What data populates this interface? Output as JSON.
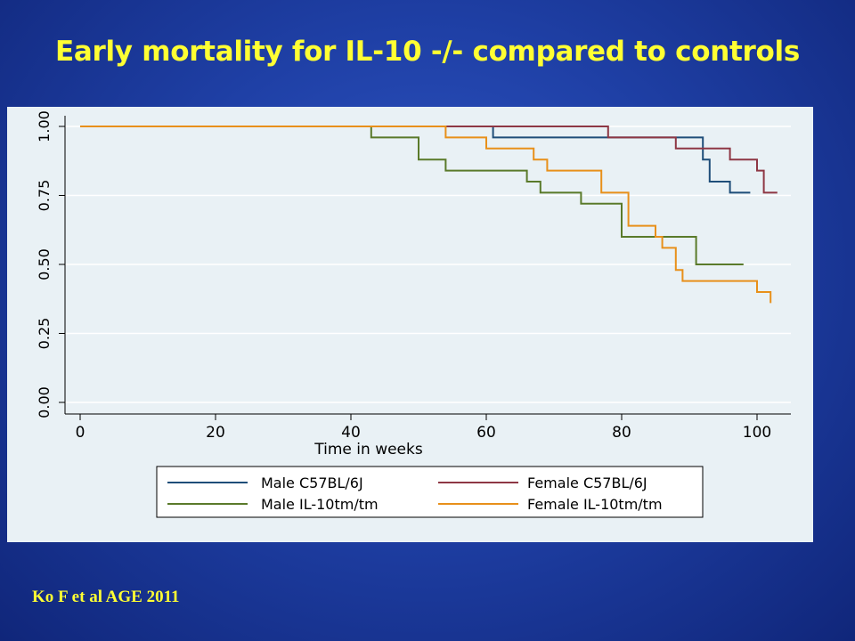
{
  "slide": {
    "title": "Early mortality for IL-10 -/- compared to controls",
    "citation": "Ko F et al AGE 2011"
  },
  "colors": {
    "background": "#1f40a6",
    "title": "#ffff33",
    "panel": "#e9f1f5",
    "grid": "#ffffff",
    "axis": "#000000"
  },
  "chart_data": {
    "type": "line",
    "step": true,
    "title": "",
    "xlabel": "Time in weeks",
    "ylabel": "",
    "xlim": [
      0,
      104
    ],
    "ylim": [
      0,
      1
    ],
    "x_ticks": [
      0,
      20,
      40,
      60,
      80,
      100
    ],
    "x_tick_labels": [
      "0",
      "20",
      "40",
      "60",
      "80",
      "100"
    ],
    "y_ticks": [
      0,
      0.25,
      0.5,
      0.75,
      1
    ],
    "y_tick_labels": [
      "0.00",
      "0.25",
      "0.50",
      "0.75",
      "1.00"
    ],
    "grid": true,
    "legend_position": "bottom",
    "series": [
      {
        "name": "Male C57BL/6J",
        "color": "#1f4e79",
        "points": [
          [
            0,
            1.0
          ],
          [
            61,
            1.0
          ],
          [
            61,
            0.96
          ],
          [
            92,
            0.96
          ],
          [
            92,
            0.88
          ],
          [
            93,
            0.88
          ],
          [
            93,
            0.8
          ],
          [
            96,
            0.8
          ],
          [
            96,
            0.76
          ],
          [
            99,
            0.76
          ]
        ]
      },
      {
        "name": "Female C57BL/6J",
        "color": "#8e3744",
        "points": [
          [
            0,
            1.0
          ],
          [
            78,
            1.0
          ],
          [
            78,
            0.96
          ],
          [
            88,
            0.96
          ],
          [
            88,
            0.92
          ],
          [
            96,
            0.92
          ],
          [
            96,
            0.88
          ],
          [
            100,
            0.88
          ],
          [
            100,
            0.84
          ],
          [
            101,
            0.84
          ],
          [
            101,
            0.76
          ],
          [
            103,
            0.76
          ]
        ]
      },
      {
        "name": "Male IL-10tm/tm",
        "color": "#5a7a2a",
        "points": [
          [
            0,
            1.0
          ],
          [
            43,
            1.0
          ],
          [
            43,
            0.96
          ],
          [
            50,
            0.96
          ],
          [
            50,
            0.88
          ],
          [
            54,
            0.88
          ],
          [
            54,
            0.84
          ],
          [
            66,
            0.84
          ],
          [
            66,
            0.8
          ],
          [
            68,
            0.8
          ],
          [
            68,
            0.76
          ],
          [
            74,
            0.76
          ],
          [
            74,
            0.72
          ],
          [
            80,
            0.72
          ],
          [
            80,
            0.6
          ],
          [
            91,
            0.6
          ],
          [
            91,
            0.5
          ],
          [
            98,
            0.5
          ]
        ]
      },
      {
        "name": "Female IL-10tm/tm",
        "color": "#e8901a",
        "points": [
          [
            0,
            1.0
          ],
          [
            54,
            1.0
          ],
          [
            54,
            0.96
          ],
          [
            60,
            0.96
          ],
          [
            60,
            0.92
          ],
          [
            67,
            0.92
          ],
          [
            67,
            0.88
          ],
          [
            69,
            0.88
          ],
          [
            69,
            0.84
          ],
          [
            77,
            0.84
          ],
          [
            77,
            0.76
          ],
          [
            81,
            0.76
          ],
          [
            81,
            0.64
          ],
          [
            85,
            0.64
          ],
          [
            85,
            0.6
          ],
          [
            86,
            0.6
          ],
          [
            86,
            0.56
          ],
          [
            88,
            0.56
          ],
          [
            88,
            0.48
          ],
          [
            89,
            0.48
          ],
          [
            89,
            0.44
          ],
          [
            100,
            0.44
          ],
          [
            100,
            0.4
          ],
          [
            102,
            0.4
          ],
          [
            102,
            0.36
          ]
        ]
      }
    ]
  }
}
